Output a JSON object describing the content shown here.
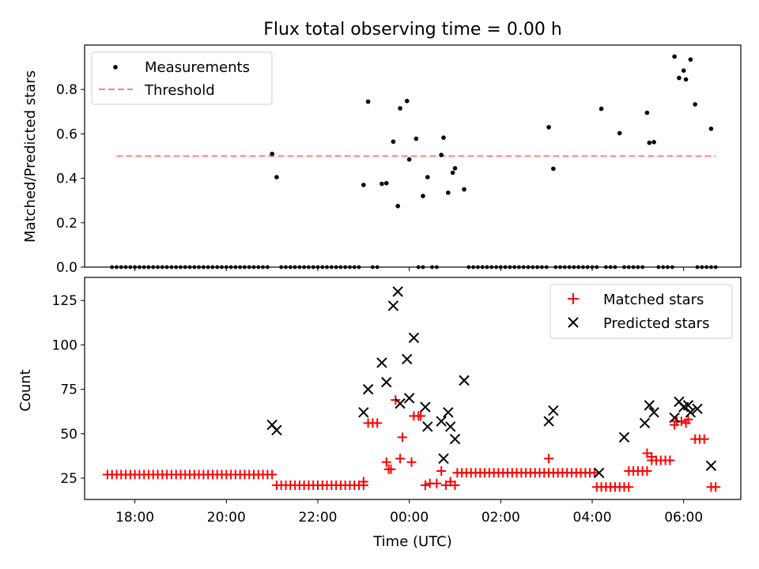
{
  "chart_data": [
    {
      "type": "scatter",
      "title": "Flux total observing time = 0.00 h",
      "xlabel": "",
      "ylabel": "Matched/Predicted stars",
      "ylim": [
        0,
        1.0
      ],
      "yticks": [
        "0.0",
        "0.2",
        "0.4",
        "0.6",
        "0.8"
      ],
      "xlim_hours": [
        16.9,
        31.25
      ],
      "grid": false,
      "legend_position": "top-left",
      "legend": [
        "Measurements",
        "Threshold"
      ],
      "threshold": {
        "value": 0.5,
        "x_start": 17.6,
        "x_end": 30.7,
        "color": "#ff7f7f"
      },
      "series": [
        {
          "name": "Measurements",
          "color": "#000000",
          "points": [
            [
              21.0,
              0.51
            ],
            [
              21.1,
              0.405
            ],
            [
              23.0,
              0.37
            ],
            [
              23.1,
              0.745
            ],
            [
              23.4,
              0.375
            ],
            [
              23.5,
              0.378
            ],
            [
              23.75,
              0.275
            ],
            [
              23.65,
              0.565
            ],
            [
              23.8,
              0.715
            ],
            [
              23.95,
              0.748
            ],
            [
              24.0,
              0.485
            ],
            [
              24.15,
              0.578
            ],
            [
              24.3,
              0.32
            ],
            [
              24.4,
              0.405
            ],
            [
              24.7,
              0.505
            ],
            [
              24.75,
              0.583
            ],
            [
              24.85,
              0.335
            ],
            [
              24.95,
              0.425
            ],
            [
              25.0,
              0.445
            ],
            [
              25.2,
              0.35
            ],
            [
              27.05,
              0.63
            ],
            [
              27.15,
              0.443
            ],
            [
              28.2,
              0.713
            ],
            [
              28.6,
              0.603
            ],
            [
              29.2,
              0.695
            ],
            [
              29.25,
              0.56
            ],
            [
              29.35,
              0.563
            ],
            [
              29.8,
              0.948
            ],
            [
              29.9,
              0.852
            ],
            [
              30.0,
              0.885
            ],
            [
              30.05,
              0.845
            ],
            [
              30.15,
              0.935
            ],
            [
              30.25,
              0.733
            ],
            [
              30.6,
              0.623
            ]
          ],
          "zero_ranges": [
            [
              17.5,
              20.95
            ],
            [
              21.2,
              22.95
            ],
            [
              23.2,
              23.3
            ],
            [
              24.2,
              24.3
            ],
            [
              24.5,
              24.6
            ],
            [
              25.3,
              27.0
            ],
            [
              27.2,
              28.1
            ],
            [
              28.3,
              28.55
            ],
            [
              28.7,
              29.1
            ],
            [
              29.45,
              29.75
            ],
            [
              30.3,
              30.75
            ]
          ]
        }
      ]
    },
    {
      "type": "scatter",
      "title": "",
      "xlabel": "Time (UTC)",
      "ylabel": "Count",
      "ylim": [
        13,
        138
      ],
      "yticks": [
        "25",
        "50",
        "75",
        "100",
        "125"
      ],
      "xticks": [
        "18:00",
        "20:00",
        "22:00",
        "00:00",
        "02:00",
        "04:00",
        "06:00"
      ],
      "xlim_hours": [
        16.9,
        31.25
      ],
      "grid": false,
      "legend_position": "top-right",
      "legend": [
        "Matched stars",
        "Predicted stars"
      ],
      "series": [
        {
          "name": "Matched stars",
          "marker": "+",
          "color": "#ff0000",
          "ranges": [
            [
              17.4,
              21.0,
              27
            ],
            [
              21.1,
              23.0,
              21
            ],
            [
              25.05,
              28.1,
              28
            ],
            [
              28.1,
              28.8,
              20
            ],
            [
              28.8,
              29.2,
              29
            ],
            [
              29.3,
              29.75,
              35
            ],
            [
              30.25,
              30.45,
              47
            ],
            [
              30.6,
              30.75,
              20
            ]
          ],
          "points": [
            [
              23.0,
              23
            ],
            [
              23.1,
              56
            ],
            [
              23.2,
              56
            ],
            [
              23.3,
              56
            ],
            [
              23.5,
              34
            ],
            [
              23.55,
              30
            ],
            [
              23.6,
              30
            ],
            [
              23.7,
              69
            ],
            [
              23.8,
              36
            ],
            [
              23.85,
              48
            ],
            [
              24.05,
              34
            ],
            [
              24.1,
              60
            ],
            [
              24.2,
              60
            ],
            [
              24.25,
              60
            ],
            [
              24.35,
              21
            ],
            [
              24.45,
              22
            ],
            [
              24.6,
              22
            ],
            [
              24.7,
              29
            ],
            [
              24.8,
              21
            ],
            [
              24.9,
              23
            ],
            [
              25.0,
              21
            ],
            [
              27.05,
              36
            ],
            [
              29.2,
              39
            ],
            [
              29.3,
              37
            ],
            [
              29.8,
              55
            ],
            [
              29.85,
              57
            ],
            [
              29.95,
              57
            ],
            [
              30.05,
              56
            ],
            [
              30.1,
              58
            ]
          ]
        },
        {
          "name": "Predicted stars",
          "marker": "x",
          "color": "#000000",
          "points": [
            [
              21.0,
              55
            ],
            [
              21.1,
              52
            ],
            [
              23.0,
              62
            ],
            [
              23.1,
              75
            ],
            [
              23.4,
              90
            ],
            [
              23.5,
              79
            ],
            [
              23.65,
              122
            ],
            [
              23.75,
              130
            ],
            [
              23.8,
              67
            ],
            [
              23.95,
              92
            ],
            [
              24.0,
              70
            ],
            [
              24.1,
              104
            ],
            [
              24.35,
              65
            ],
            [
              24.4,
              54
            ],
            [
              24.7,
              57
            ],
            [
              24.75,
              36
            ],
            [
              24.85,
              62
            ],
            [
              24.9,
              54
            ],
            [
              25.0,
              47
            ],
            [
              25.2,
              80
            ],
            [
              27.05,
              57
            ],
            [
              27.15,
              63
            ],
            [
              28.15,
              28
            ],
            [
              28.7,
              48
            ],
            [
              29.15,
              56
            ],
            [
              29.25,
              66
            ],
            [
              29.35,
              62
            ],
            [
              29.8,
              59
            ],
            [
              29.9,
              68
            ],
            [
              30.0,
              65
            ],
            [
              30.1,
              66
            ],
            [
              30.15,
              62
            ],
            [
              30.3,
              64
            ],
            [
              30.6,
              32
            ]
          ]
        }
      ]
    }
  ]
}
